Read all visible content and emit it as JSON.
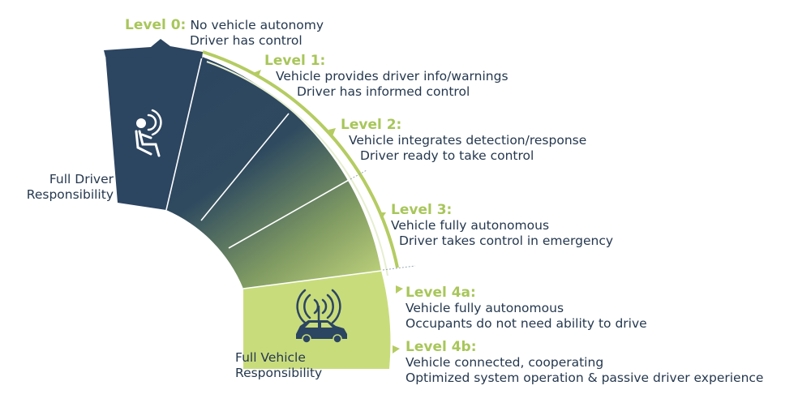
{
  "colors": {
    "navy": "#2c4561",
    "green": "#c9dc7c",
    "heading_green": "#a8c65a",
    "text": "#25384f"
  },
  "levels": [
    {
      "heading": "Level 0:",
      "line1": "No vehicle autonomy",
      "line2": "Driver has control"
    },
    {
      "heading": "Level 1:",
      "line1": "Vehicle provides driver info/warnings",
      "line2": "Driver has informed control"
    },
    {
      "heading": "Level 2:",
      "line1": "Vehicle integrates detection/response",
      "line2": "Driver ready to take control"
    },
    {
      "heading": "Level 3:",
      "line1": "Vehicle fully autonomous",
      "line2": "Driver takes control in emergency"
    },
    {
      "heading": "Level 4a:",
      "line1": "Vehicle fully autonomous",
      "line2": "Occupants do not need ability to drive"
    },
    {
      "heading": "Level 4b:",
      "line1": "Vehicle connected, cooperating",
      "line2": "Optimized system operation & passive driver experience"
    }
  ],
  "left_label": {
    "line1": "Full  Driver",
    "line2": "Responsibility"
  },
  "bottom_label": {
    "line1": "Full Vehicle",
    "line2": "Responsibility"
  },
  "icons": {
    "driver": "driver-signal-icon",
    "vehicle": "connected-car-icon"
  }
}
